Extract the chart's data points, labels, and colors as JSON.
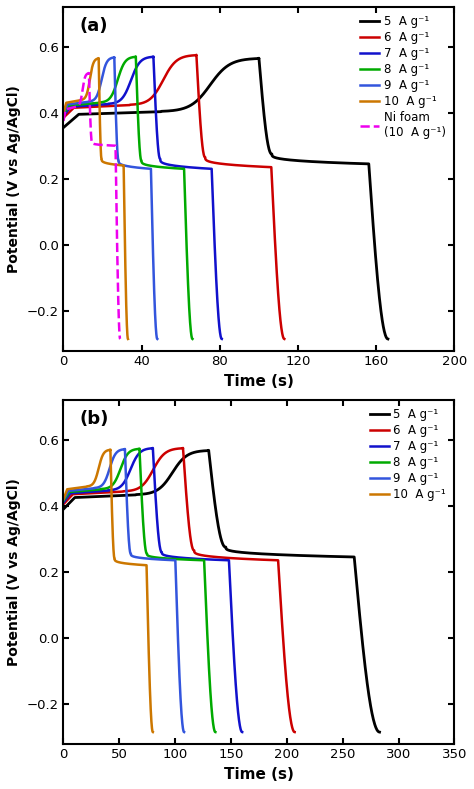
{
  "panel_a": {
    "label": "(a)",
    "xlabel": "Time (s)",
    "ylabel": "Potential (V vs Ag/AgCl)",
    "xlim": [
      0,
      200
    ],
    "ylim": [
      -0.32,
      0.72
    ],
    "yticks": [
      -0.2,
      0.0,
      0.2,
      0.4,
      0.6
    ],
    "xticks": [
      0,
      40,
      80,
      120,
      160,
      200
    ],
    "curves": [
      {
        "label": "5  A g⁻¹",
        "color": "#000000",
        "lw": 2.0,
        "ls": "-",
        "charge_end": 100,
        "discharge_end": 166,
        "v_start": 0.375,
        "v_plateau_charge": 0.395,
        "v_peak": 0.565,
        "v_discharge_shoulder": 0.275,
        "v_knee": 0.245,
        "v_end": -0.285
      },
      {
        "label": "6  A g⁻¹",
        "color": "#cc0000",
        "lw": 1.8,
        "ls": "-",
        "charge_end": 68,
        "discharge_end": 113,
        "v_start": 0.405,
        "v_plateau_charge": 0.415,
        "v_peak": 0.575,
        "v_discharge_shoulder": 0.265,
        "v_knee": 0.235,
        "v_end": -0.285
      },
      {
        "label": "7  A g⁻¹",
        "color": "#1111cc",
        "lw": 1.8,
        "ls": "-",
        "charge_end": 46,
        "discharge_end": 81,
        "v_start": 0.41,
        "v_plateau_charge": 0.418,
        "v_peak": 0.57,
        "v_discharge_shoulder": 0.26,
        "v_knee": 0.23,
        "v_end": -0.285
      },
      {
        "label": "8  A g⁻¹",
        "color": "#00aa00",
        "lw": 1.8,
        "ls": "-",
        "charge_end": 37,
        "discharge_end": 66,
        "v_start": 0.415,
        "v_plateau_charge": 0.422,
        "v_peak": 0.57,
        "v_discharge_shoulder": 0.255,
        "v_knee": 0.23,
        "v_end": -0.285
      },
      {
        "label": "9  A g⁻¹",
        "color": "#3355dd",
        "lw": 1.8,
        "ls": "-",
        "charge_end": 26,
        "discharge_end": 48,
        "v_start": 0.418,
        "v_plateau_charge": 0.425,
        "v_peak": 0.568,
        "v_discharge_shoulder": 0.255,
        "v_knee": 0.23,
        "v_end": -0.285
      },
      {
        "label": "10  A g⁻¹",
        "color": "#cc7700",
        "lw": 1.8,
        "ls": "-",
        "charge_end": 18,
        "discharge_end": 33,
        "v_start": 0.42,
        "v_plateau_charge": 0.43,
        "v_peak": 0.565,
        "v_discharge_shoulder": 0.26,
        "v_knee": 0.24,
        "v_end": -0.285
      },
      {
        "label": "Ni foam\n(10  A g⁻¹)",
        "color": "#ee00ee",
        "lw": 1.8,
        "ls": "--",
        "charge_end": 13,
        "discharge_end": 29,
        "v_start": 0.395,
        "v_plateau_charge": 0.41,
        "v_peak": 0.52,
        "v_discharge_shoulder": 0.31,
        "v_knee": 0.3,
        "v_end": -0.285
      }
    ]
  },
  "panel_b": {
    "label": "(b)",
    "xlabel": "Time (s)",
    "ylabel": "Potential (V vs Ag/AgCl)",
    "xlim": [
      0,
      350
    ],
    "ylim": [
      -0.32,
      0.72
    ],
    "yticks": [
      -0.2,
      0.0,
      0.2,
      0.4,
      0.6
    ],
    "xticks": [
      0,
      50,
      100,
      150,
      200,
      250,
      300,
      350
    ],
    "curves": [
      {
        "label": "5  A g⁻¹",
        "color": "#000000",
        "lw": 2.0,
        "ls": "-",
        "charge_end": 130,
        "discharge_end": 283,
        "v_start": 0.41,
        "v_plateau_charge": 0.425,
        "v_peak": 0.568,
        "v_discharge_shoulder": 0.275,
        "v_knee": 0.245,
        "v_end": -0.285
      },
      {
        "label": "6  A g⁻¹",
        "color": "#cc0000",
        "lw": 1.8,
        "ls": "-",
        "charge_end": 107,
        "discharge_end": 207,
        "v_start": 0.425,
        "v_plateau_charge": 0.435,
        "v_peak": 0.575,
        "v_discharge_shoulder": 0.265,
        "v_knee": 0.235,
        "v_end": -0.285
      },
      {
        "label": "7  A g⁻¹",
        "color": "#1111cc",
        "lw": 1.8,
        "ls": "-",
        "charge_end": 80,
        "discharge_end": 160,
        "v_start": 0.43,
        "v_plateau_charge": 0.438,
        "v_peak": 0.575,
        "v_discharge_shoulder": 0.26,
        "v_knee": 0.235,
        "v_end": -0.285
      },
      {
        "label": "8  A g⁻¹",
        "color": "#00aa00",
        "lw": 1.8,
        "ls": "-",
        "charge_end": 68,
        "discharge_end": 136,
        "v_start": 0.435,
        "v_plateau_charge": 0.442,
        "v_peak": 0.573,
        "v_discharge_shoulder": 0.255,
        "v_knee": 0.235,
        "v_end": -0.285
      },
      {
        "label": "9  A g⁻¹",
        "color": "#3355dd",
        "lw": 1.8,
        "ls": "-",
        "charge_end": 55,
        "discharge_end": 108,
        "v_start": 0.438,
        "v_plateau_charge": 0.445,
        "v_peak": 0.572,
        "v_discharge_shoulder": 0.255,
        "v_knee": 0.235,
        "v_end": -0.285
      },
      {
        "label": "10  A g⁻¹",
        "color": "#cc7700",
        "lw": 1.8,
        "ls": "-",
        "charge_end": 42,
        "discharge_end": 80,
        "v_start": 0.44,
        "v_plateau_charge": 0.45,
        "v_peak": 0.57,
        "v_discharge_shoulder": 0.24,
        "v_knee": 0.22,
        "v_end": -0.285
      }
    ]
  }
}
